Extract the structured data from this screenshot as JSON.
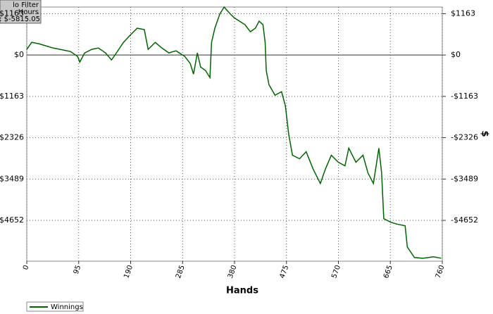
{
  "chart_data": {
    "type": "line",
    "info_box": [
      "lo Filter",
      "Hours",
      "s: $-5815.05"
    ],
    "x_label": "Hands",
    "y_label": "$",
    "x": [
      0,
      9,
      22,
      35,
      48,
      61,
      80,
      93,
      97,
      106,
      119,
      131,
      144,
      155,
      164,
      177,
      189,
      202,
      215,
      222,
      235,
      247,
      260,
      273,
      289,
      299,
      305,
      312,
      318,
      327,
      335,
      338,
      344,
      353,
      361,
      370,
      379,
      389,
      399,
      409,
      418,
      425,
      432,
      436,
      438,
      443,
      454,
      466,
      473,
      479,
      486,
      499,
      511,
      524,
      537,
      546,
      557,
      570,
      582,
      589,
      602,
      615,
      624,
      634,
      644,
      649,
      653,
      666,
      679,
      692,
      696,
      709,
      724,
      744,
      758
    ],
    "series": [
      {
        "name": "Winnings",
        "color": "#006400",
        "values": [
          159,
          357,
          318,
          258,
          198,
          159,
          99,
          -40,
          -198,
          60,
          159,
          198,
          60,
          -139,
          60,
          357,
          556,
          754,
          715,
          159,
          357,
          198,
          60,
          119,
          -40,
          -238,
          -536,
          60,
          -337,
          -437,
          -635,
          357,
          754,
          1151,
          1350,
          1191,
          1052,
          953,
          854,
          655,
          754,
          953,
          854,
          357,
          -437,
          -834,
          -1131,
          -1032,
          -1429,
          -2223,
          -2819,
          -2918,
          -2720,
          -3216,
          -3613,
          -3216,
          -2819,
          -3017,
          -3116,
          -2620,
          -3017,
          -2819,
          -3315,
          -3613,
          -2620,
          -3315,
          -4605,
          -4704,
          -4764,
          -4803,
          -5399,
          -5697,
          -5717,
          -5677,
          -5717
        ]
      }
    ],
    "xlim": [
      0,
      760
    ],
    "xticks": [
      0,
      95,
      190,
      285,
      380,
      475,
      570,
      665,
      760
    ],
    "ylim": [
      -5800,
      1350
    ],
    "yticks": [
      {
        "value": 1163,
        "label": "$1163"
      },
      {
        "value": 0,
        "label": "$0"
      },
      {
        "value": -1163,
        "label": "-$1163"
      },
      {
        "value": -2326,
        "label": "-$2326"
      },
      {
        "value": -3489,
        "label": "-$3489"
      },
      {
        "value": -4652,
        "label": "-$4652"
      }
    ],
    "grid": true
  }
}
